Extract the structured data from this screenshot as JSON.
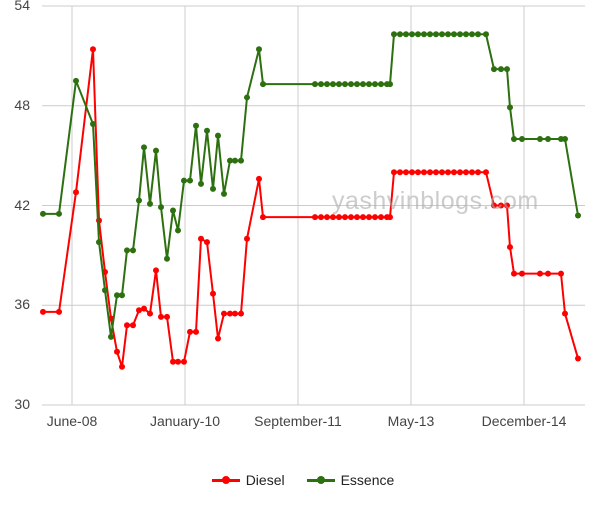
{
  "chart_data": {
    "type": "line",
    "title": "",
    "xlabel": "",
    "ylabel": "",
    "ylim": [
      30,
      54
    ],
    "yticks": [
      30,
      36,
      42,
      48,
      54
    ],
    "x_tick_labels": [
      "June-08",
      "January-10",
      "September-11",
      "May-13",
      "December-14"
    ],
    "grid": true,
    "legend_position": "bottom",
    "watermark": "yashvinblogs.com",
    "series": [
      {
        "name": "Diesel",
        "color": "#ff0000",
        "points": [
          [
            43,
            35.6
          ],
          [
            59,
            35.6
          ],
          [
            76,
            42.8
          ],
          [
            93,
            51.4
          ],
          [
            99,
            41.1
          ],
          [
            105,
            38.0
          ],
          [
            111,
            35.2
          ],
          [
            117,
            33.2
          ],
          [
            122,
            32.3
          ],
          [
            127,
            34.8
          ],
          [
            133,
            34.8
          ],
          [
            139,
            35.7
          ],
          [
            144,
            35.8
          ],
          [
            150,
            35.5
          ],
          [
            156,
            38.1
          ],
          [
            161,
            35.3
          ],
          [
            167,
            35.3
          ],
          [
            173,
            32.6
          ],
          [
            178,
            32.6
          ],
          [
            184,
            32.6
          ],
          [
            190,
            34.4
          ],
          [
            196,
            34.4
          ],
          [
            201,
            40.0
          ],
          [
            207,
            39.8
          ],
          [
            213,
            36.7
          ],
          [
            218,
            34.0
          ],
          [
            224,
            35.5
          ],
          [
            230,
            35.5
          ],
          [
            235,
            35.5
          ],
          [
            241,
            35.5
          ],
          [
            247,
            40.0
          ],
          [
            259,
            43.6
          ],
          [
            263,
            41.3
          ],
          [
            315,
            41.3
          ],
          [
            321,
            41.3
          ],
          [
            327,
            41.3
          ],
          [
            333,
            41.3
          ],
          [
            339,
            41.3
          ],
          [
            345,
            41.3
          ],
          [
            351,
            41.3
          ],
          [
            357,
            41.3
          ],
          [
            363,
            41.3
          ],
          [
            369,
            41.3
          ],
          [
            375,
            41.3
          ],
          [
            381,
            41.3
          ],
          [
            387,
            41.3
          ],
          [
            390,
            41.3
          ],
          [
            394,
            44.0
          ],
          [
            400,
            44.0
          ],
          [
            406,
            44.0
          ],
          [
            412,
            44.0
          ],
          [
            418,
            44.0
          ],
          [
            424,
            44.0
          ],
          [
            430,
            44.0
          ],
          [
            436,
            44.0
          ],
          [
            442,
            44.0
          ],
          [
            448,
            44.0
          ],
          [
            454,
            44.0
          ],
          [
            460,
            44.0
          ],
          [
            466,
            44.0
          ],
          [
            472,
            44.0
          ],
          [
            478,
            44.0
          ],
          [
            486,
            44.0
          ],
          [
            494,
            42.0
          ],
          [
            501,
            42.0
          ],
          [
            507,
            42.0
          ],
          [
            510,
            39.5
          ],
          [
            514,
            37.9
          ],
          [
            522,
            37.9
          ],
          [
            540,
            37.9
          ],
          [
            548,
            37.9
          ],
          [
            561,
            37.9
          ],
          [
            565,
            35.5
          ],
          [
            578,
            32.8
          ]
        ]
      },
      {
        "name": "Essence",
        "color": "#2d7010",
        "points": [
          [
            43,
            41.5
          ],
          [
            59,
            41.5
          ],
          [
            76,
            49.5
          ],
          [
            93,
            46.9
          ],
          [
            99,
            39.8
          ],
          [
            105,
            36.9
          ],
          [
            111,
            34.1
          ],
          [
            117,
            36.6
          ],
          [
            122,
            36.6
          ],
          [
            127,
            39.3
          ],
          [
            133,
            39.3
          ],
          [
            139,
            42.3
          ],
          [
            144,
            45.5
          ],
          [
            150,
            42.1
          ],
          [
            156,
            45.3
          ],
          [
            161,
            41.9
          ],
          [
            167,
            38.8
          ],
          [
            173,
            41.7
          ],
          [
            178,
            40.5
          ],
          [
            184,
            43.5
          ],
          [
            190,
            43.5
          ],
          [
            196,
            46.8
          ],
          [
            201,
            43.3
          ],
          [
            207,
            46.5
          ],
          [
            213,
            43.0
          ],
          [
            218,
            46.2
          ],
          [
            224,
            42.7
          ],
          [
            230,
            44.7
          ],
          [
            235,
            44.7
          ],
          [
            241,
            44.7
          ],
          [
            247,
            48.5
          ],
          [
            259,
            51.4
          ],
          [
            263,
            49.3
          ],
          [
            315,
            49.3
          ],
          [
            321,
            49.3
          ],
          [
            327,
            49.3
          ],
          [
            333,
            49.3
          ],
          [
            339,
            49.3
          ],
          [
            345,
            49.3
          ],
          [
            351,
            49.3
          ],
          [
            357,
            49.3
          ],
          [
            363,
            49.3
          ],
          [
            369,
            49.3
          ],
          [
            375,
            49.3
          ],
          [
            381,
            49.3
          ],
          [
            387,
            49.3
          ],
          [
            390,
            49.3
          ],
          [
            394,
            52.3
          ],
          [
            400,
            52.3
          ],
          [
            406,
            52.3
          ],
          [
            412,
            52.3
          ],
          [
            418,
            52.3
          ],
          [
            424,
            52.3
          ],
          [
            430,
            52.3
          ],
          [
            436,
            52.3
          ],
          [
            442,
            52.3
          ],
          [
            448,
            52.3
          ],
          [
            454,
            52.3
          ],
          [
            460,
            52.3
          ],
          [
            466,
            52.3
          ],
          [
            472,
            52.3
          ],
          [
            478,
            52.3
          ],
          [
            486,
            52.3
          ],
          [
            494,
            50.2
          ],
          [
            501,
            50.2
          ],
          [
            507,
            50.2
          ],
          [
            510,
            47.9
          ],
          [
            514,
            46.0
          ],
          [
            522,
            46.0
          ],
          [
            540,
            46.0
          ],
          [
            548,
            46.0
          ],
          [
            561,
            46.0
          ],
          [
            565,
            46.0
          ],
          [
            578,
            41.4
          ]
        ]
      }
    ],
    "point_format": "[pixel_x, value] — x positions are pixel-estimated along a time axis where June-08≈72px, January-10≈185px, September-11≈298px, May-13≈411px, December-14≈524px"
  },
  "legend": {
    "items": [
      {
        "label": "Diesel",
        "color": "#ff0000"
      },
      {
        "label": "Essence",
        "color": "#2d7010"
      }
    ]
  }
}
